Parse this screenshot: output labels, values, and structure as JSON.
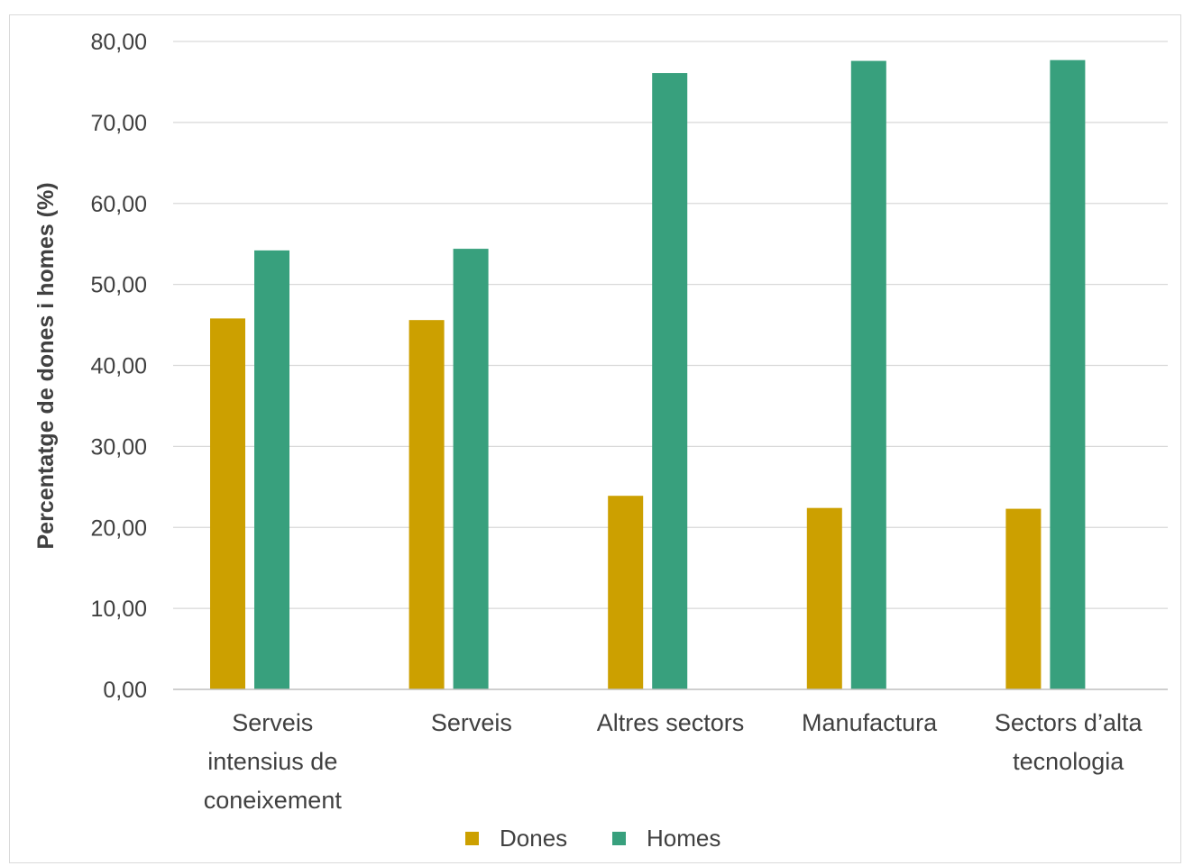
{
  "chart_data": {
    "type": "bar",
    "title": "",
    "xlabel": "",
    "ylabel": "Percentatge de dones i homes  (%)",
    "categories": [
      [
        "Serveis",
        "intensius de",
        "coneixement"
      ],
      [
        "Serveis"
      ],
      [
        "Altres sectors"
      ],
      [
        "Manufactura"
      ],
      [
        "Sectors d’alta",
        "tecnologia"
      ]
    ],
    "series": [
      {
        "name": "Dones",
        "color": "#CCA000",
        "values": [
          45.8,
          45.6,
          23.9,
          22.4,
          22.3
        ]
      },
      {
        "name": "Homes",
        "color": "#38A07D",
        "values": [
          54.2,
          54.4,
          76.1,
          77.6,
          77.7
        ]
      }
    ],
    "ylim": [
      0,
      80
    ],
    "yticks": [
      "0,00",
      "10,00",
      "20,00",
      "30,00",
      "40,00",
      "50,00",
      "60,00",
      "70,00",
      "80,00"
    ],
    "grid": true,
    "legend_position": "bottom"
  }
}
